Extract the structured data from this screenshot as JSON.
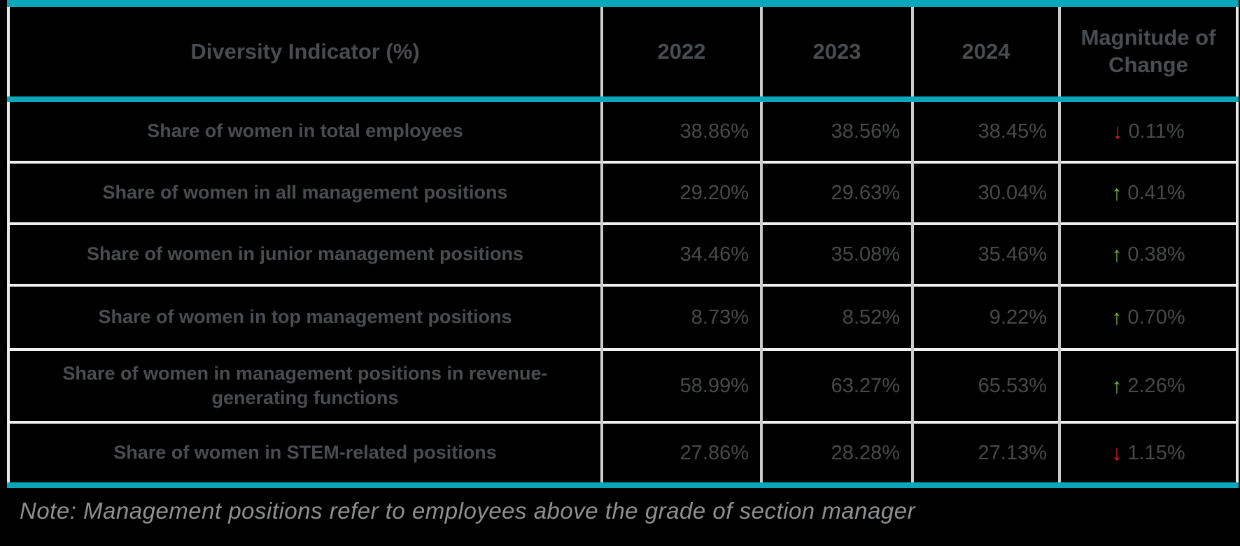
{
  "colors": {
    "background": "#000000",
    "accent_teal": "#0aa7ba",
    "grid_vertical": "#cccccc",
    "grid_horizontal": "#f0f0f0",
    "header_text": "#4a4d4f",
    "value_text": "#47494b",
    "arrow_up_green": "#76b043",
    "arrow_down_red": "#ee1c1c",
    "note_text": "#8e9092"
  },
  "chart_data": {
    "type": "table",
    "columns": [
      "Diversity Indicator (%)",
      "2022",
      "2023",
      "2024",
      "Magnitude of Change"
    ],
    "rows": [
      {
        "label": "Share of women in total employees",
        "values": [
          "38.86%",
          "38.56%",
          "38.45%"
        ],
        "change": "0.11%",
        "direction": "down",
        "arrow": "↓",
        "arrow_color": "#ee1c1c"
      },
      {
        "label": "Share of women in all management positions",
        "values": [
          "29.20%",
          "29.63%",
          "30.04%"
        ],
        "change": "0.41%",
        "direction": "up",
        "arrow": "↑",
        "arrow_color": "#76b043"
      },
      {
        "label": "Share of women in junior management positions",
        "values": [
          "34.46%",
          "35.08%",
          "35.46%"
        ],
        "change": "0.38%",
        "direction": "up",
        "arrow": "↑",
        "arrow_color": "#76b043"
      },
      {
        "label": "Share of women in top management positions",
        "values": [
          "8.73%",
          "8.52%",
          "9.22%"
        ],
        "change": "0.70%",
        "direction": "up",
        "arrow": "↑",
        "arrow_color": "#76b043"
      },
      {
        "label": "Share of women in management positions in revenue-generating functions",
        "values": [
          "58.99%",
          "63.27%",
          "65.53%"
        ],
        "change": "2.26%",
        "direction": "up",
        "arrow": "↑",
        "arrow_color": "#76b043"
      },
      {
        "label": "Share of women in STEM-related positions",
        "values": [
          "27.86%",
          "28.28%",
          "27.13%"
        ],
        "change": "1.15%",
        "direction": "down",
        "arrow": "↓",
        "arrow_color": "#ee1c1c"
      }
    ]
  },
  "note": "Note: Management positions refer to employees above the grade of section manager"
}
